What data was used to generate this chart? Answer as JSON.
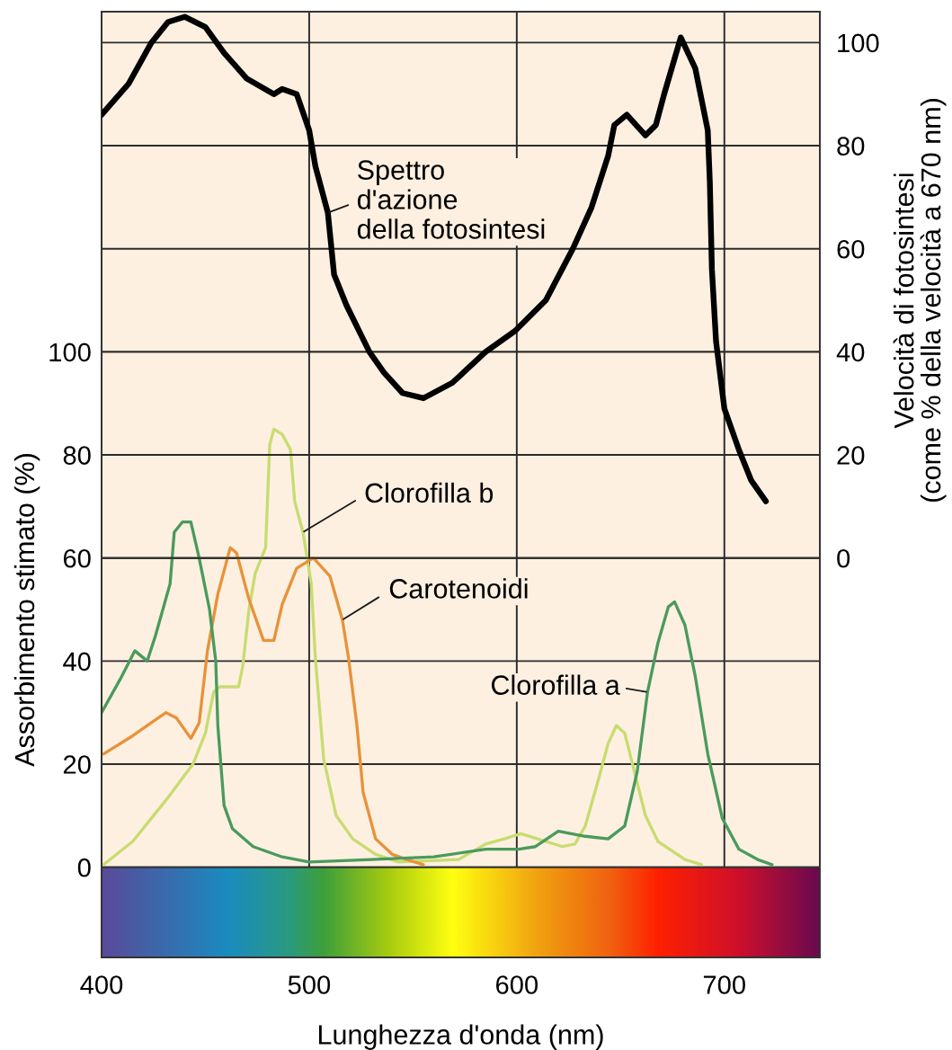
{
  "chart_data": {
    "type": "line",
    "xlabel": "Lunghezza d'onda (nm)",
    "ylabel": "Assorbimento stimato (%)",
    "y2label": "Velocità di fotosintesi\n(come % della velocità a 670 nm)",
    "xlim": [
      400,
      746
    ],
    "xticks": [
      400,
      500,
      600,
      700
    ],
    "ylim": [
      -17.5,
      166
    ],
    "yticks": [
      0,
      20,
      40,
      60,
      80,
      100
    ],
    "y2lim": [
      -77.5,
      106
    ],
    "y2ticks": [
      0,
      20,
      40,
      60,
      80,
      100
    ],
    "grid": true,
    "series": [
      {
        "name": "Spettro\nd'azione\ndella fotosintesi",
        "color": "#000000",
        "axis": "y2",
        "x": [
          400,
          413,
          424,
          432,
          440,
          450,
          459,
          470,
          483,
          487,
          494,
          500,
          503,
          509,
          512,
          518,
          529,
          536,
          545,
          555,
          569,
          585,
          599,
          614,
          627,
          636,
          644,
          647,
          653,
          662,
          667,
          671,
          679,
          686,
          692,
          693,
          694,
          696,
          700,
          707,
          713,
          720
        ],
        "values": [
          86,
          92,
          100,
          104,
          105,
          103,
          98,
          93,
          90,
          91,
          90,
          83,
          76,
          67,
          55,
          49,
          40,
          36,
          32,
          31,
          34,
          40,
          44,
          50,
          60,
          68,
          78,
          84,
          86,
          82,
          84,
          90,
          101,
          95,
          83,
          73,
          56,
          42,
          29,
          21,
          15,
          11
        ]
      },
      {
        "name": "Clorofilla b",
        "color": "#c8dc70",
        "x": [
          401,
          415,
          431,
          444,
          450,
          454,
          457,
          466,
          468,
          471,
          474,
          479,
          481,
          483,
          487,
          491,
          493,
          497,
          501,
          503,
          507,
          513,
          521,
          532,
          543,
          572,
          585,
          594,
          602,
          610,
          622,
          628,
          633,
          639,
          644,
          648,
          652,
          657,
          662,
          668,
          681,
          689
        ],
        "values": [
          0.5,
          5,
          13,
          20,
          26,
          34,
          35,
          35,
          39,
          50,
          57,
          62,
          82,
          85,
          84,
          81,
          71,
          65,
          55,
          40.5,
          21,
          10,
          5.5,
          2.5,
          1,
          1.5,
          4.5,
          5.5,
          6.5,
          5.5,
          4,
          4.5,
          8,
          16.5,
          24,
          27.5,
          26,
          18,
          10,
          5,
          1.5,
          0.5
        ]
      },
      {
        "name": "Carotenoidi",
        "color": "#e8923a",
        "x": [
          401,
          415,
          431,
          436,
          443,
          447,
          451,
          456,
          462,
          465,
          471,
          478,
          483,
          487,
          494,
          502,
          510,
          516,
          519,
          523,
          526,
          532,
          540,
          547,
          555
        ],
        "values": [
          22,
          25.5,
          30,
          29,
          25,
          28,
          42,
          53,
          62,
          61,
          52,
          44,
          44,
          51,
          58,
          60,
          56.5,
          48,
          40.5,
          27.5,
          14.5,
          5.5,
          2.5,
          1.5,
          0.5
        ]
      },
      {
        "name": "Clorofilla a",
        "color": "#4a9a5c",
        "x": [
          400,
          409,
          416,
          422,
          426,
          433,
          435,
          439,
          443,
          447,
          452,
          455,
          456,
          459,
          463,
          473,
          487,
          500,
          530,
          560,
          585,
          601,
          609,
          620,
          633,
          644,
          652,
          658,
          663,
          668,
          673,
          676,
          681,
          686,
          692,
          699,
          707,
          716,
          723
        ],
        "values": [
          30,
          36.5,
          42,
          40,
          45,
          55,
          65,
          67,
          67,
          60,
          50,
          40,
          27.5,
          12,
          7.5,
          4,
          2,
          1,
          1.5,
          2,
          3.5,
          3.5,
          4,
          7,
          6,
          5.5,
          8,
          18.5,
          34,
          43.5,
          50.5,
          51.5,
          47,
          37,
          22,
          9.5,
          3.5,
          1.5,
          0.5
        ]
      }
    ]
  }
}
